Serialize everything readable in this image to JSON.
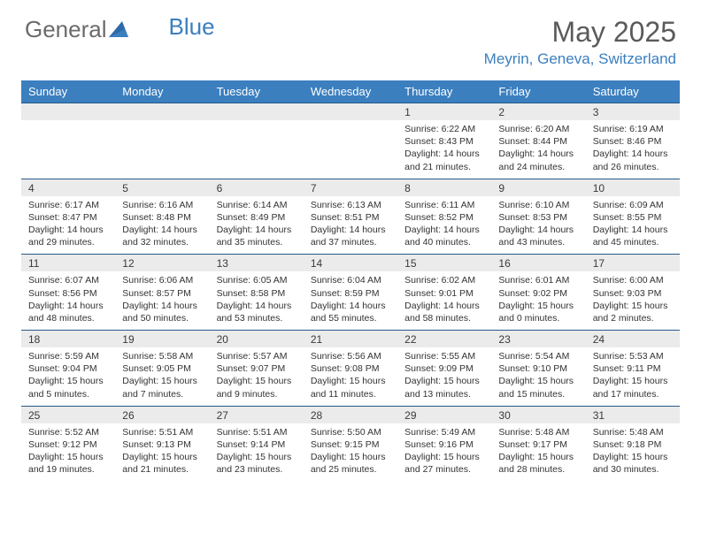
{
  "logo": {
    "text1": "General",
    "text2": "Blue"
  },
  "title": "May 2025",
  "location": "Meyrin, Geneva, Switzerland",
  "colors": {
    "header_bg": "#3b7fbf",
    "header_text": "#ffffff",
    "daynum_bg": "#ebebeb",
    "body_text": "#333333",
    "accent": "#3b7fbf",
    "border": "#255a8a"
  },
  "fonts": {
    "title_size": 32,
    "location_size": 17,
    "header_size": 13,
    "daynum_size": 12,
    "detail_size": 10.5
  },
  "day_labels": [
    "Sunday",
    "Monday",
    "Tuesday",
    "Wednesday",
    "Thursday",
    "Friday",
    "Saturday"
  ],
  "weeks": [
    {
      "nums": [
        "",
        "",
        "",
        "",
        "1",
        "2",
        "3"
      ],
      "details": [
        null,
        null,
        null,
        null,
        {
          "sunrise": "Sunrise: 6:22 AM",
          "sunset": "Sunset: 8:43 PM",
          "day1": "Daylight: 14 hours",
          "day2": "and 21 minutes."
        },
        {
          "sunrise": "Sunrise: 6:20 AM",
          "sunset": "Sunset: 8:44 PM",
          "day1": "Daylight: 14 hours",
          "day2": "and 24 minutes."
        },
        {
          "sunrise": "Sunrise: 6:19 AM",
          "sunset": "Sunset: 8:46 PM",
          "day1": "Daylight: 14 hours",
          "day2": "and 26 minutes."
        }
      ]
    },
    {
      "nums": [
        "4",
        "5",
        "6",
        "7",
        "8",
        "9",
        "10"
      ],
      "details": [
        {
          "sunrise": "Sunrise: 6:17 AM",
          "sunset": "Sunset: 8:47 PM",
          "day1": "Daylight: 14 hours",
          "day2": "and 29 minutes."
        },
        {
          "sunrise": "Sunrise: 6:16 AM",
          "sunset": "Sunset: 8:48 PM",
          "day1": "Daylight: 14 hours",
          "day2": "and 32 minutes."
        },
        {
          "sunrise": "Sunrise: 6:14 AM",
          "sunset": "Sunset: 8:49 PM",
          "day1": "Daylight: 14 hours",
          "day2": "and 35 minutes."
        },
        {
          "sunrise": "Sunrise: 6:13 AM",
          "sunset": "Sunset: 8:51 PM",
          "day1": "Daylight: 14 hours",
          "day2": "and 37 minutes."
        },
        {
          "sunrise": "Sunrise: 6:11 AM",
          "sunset": "Sunset: 8:52 PM",
          "day1": "Daylight: 14 hours",
          "day2": "and 40 minutes."
        },
        {
          "sunrise": "Sunrise: 6:10 AM",
          "sunset": "Sunset: 8:53 PM",
          "day1": "Daylight: 14 hours",
          "day2": "and 43 minutes."
        },
        {
          "sunrise": "Sunrise: 6:09 AM",
          "sunset": "Sunset: 8:55 PM",
          "day1": "Daylight: 14 hours",
          "day2": "and 45 minutes."
        }
      ]
    },
    {
      "nums": [
        "11",
        "12",
        "13",
        "14",
        "15",
        "16",
        "17"
      ],
      "details": [
        {
          "sunrise": "Sunrise: 6:07 AM",
          "sunset": "Sunset: 8:56 PM",
          "day1": "Daylight: 14 hours",
          "day2": "and 48 minutes."
        },
        {
          "sunrise": "Sunrise: 6:06 AM",
          "sunset": "Sunset: 8:57 PM",
          "day1": "Daylight: 14 hours",
          "day2": "and 50 minutes."
        },
        {
          "sunrise": "Sunrise: 6:05 AM",
          "sunset": "Sunset: 8:58 PM",
          "day1": "Daylight: 14 hours",
          "day2": "and 53 minutes."
        },
        {
          "sunrise": "Sunrise: 6:04 AM",
          "sunset": "Sunset: 8:59 PM",
          "day1": "Daylight: 14 hours",
          "day2": "and 55 minutes."
        },
        {
          "sunrise": "Sunrise: 6:02 AM",
          "sunset": "Sunset: 9:01 PM",
          "day1": "Daylight: 14 hours",
          "day2": "and 58 minutes."
        },
        {
          "sunrise": "Sunrise: 6:01 AM",
          "sunset": "Sunset: 9:02 PM",
          "day1": "Daylight: 15 hours",
          "day2": "and 0 minutes."
        },
        {
          "sunrise": "Sunrise: 6:00 AM",
          "sunset": "Sunset: 9:03 PM",
          "day1": "Daylight: 15 hours",
          "day2": "and 2 minutes."
        }
      ]
    },
    {
      "nums": [
        "18",
        "19",
        "20",
        "21",
        "22",
        "23",
        "24"
      ],
      "details": [
        {
          "sunrise": "Sunrise: 5:59 AM",
          "sunset": "Sunset: 9:04 PM",
          "day1": "Daylight: 15 hours",
          "day2": "and 5 minutes."
        },
        {
          "sunrise": "Sunrise: 5:58 AM",
          "sunset": "Sunset: 9:05 PM",
          "day1": "Daylight: 15 hours",
          "day2": "and 7 minutes."
        },
        {
          "sunrise": "Sunrise: 5:57 AM",
          "sunset": "Sunset: 9:07 PM",
          "day1": "Daylight: 15 hours",
          "day2": "and 9 minutes."
        },
        {
          "sunrise": "Sunrise: 5:56 AM",
          "sunset": "Sunset: 9:08 PM",
          "day1": "Daylight: 15 hours",
          "day2": "and 11 minutes."
        },
        {
          "sunrise": "Sunrise: 5:55 AM",
          "sunset": "Sunset: 9:09 PM",
          "day1": "Daylight: 15 hours",
          "day2": "and 13 minutes."
        },
        {
          "sunrise": "Sunrise: 5:54 AM",
          "sunset": "Sunset: 9:10 PM",
          "day1": "Daylight: 15 hours",
          "day2": "and 15 minutes."
        },
        {
          "sunrise": "Sunrise: 5:53 AM",
          "sunset": "Sunset: 9:11 PM",
          "day1": "Daylight: 15 hours",
          "day2": "and 17 minutes."
        }
      ]
    },
    {
      "nums": [
        "25",
        "26",
        "27",
        "28",
        "29",
        "30",
        "31"
      ],
      "details": [
        {
          "sunrise": "Sunrise: 5:52 AM",
          "sunset": "Sunset: 9:12 PM",
          "day1": "Daylight: 15 hours",
          "day2": "and 19 minutes."
        },
        {
          "sunrise": "Sunrise: 5:51 AM",
          "sunset": "Sunset: 9:13 PM",
          "day1": "Daylight: 15 hours",
          "day2": "and 21 minutes."
        },
        {
          "sunrise": "Sunrise: 5:51 AM",
          "sunset": "Sunset: 9:14 PM",
          "day1": "Daylight: 15 hours",
          "day2": "and 23 minutes."
        },
        {
          "sunrise": "Sunrise: 5:50 AM",
          "sunset": "Sunset: 9:15 PM",
          "day1": "Daylight: 15 hours",
          "day2": "and 25 minutes."
        },
        {
          "sunrise": "Sunrise: 5:49 AM",
          "sunset": "Sunset: 9:16 PM",
          "day1": "Daylight: 15 hours",
          "day2": "and 27 minutes."
        },
        {
          "sunrise": "Sunrise: 5:48 AM",
          "sunset": "Sunset: 9:17 PM",
          "day1": "Daylight: 15 hours",
          "day2": "and 28 minutes."
        },
        {
          "sunrise": "Sunrise: 5:48 AM",
          "sunset": "Sunset: 9:18 PM",
          "day1": "Daylight: 15 hours",
          "day2": "and 30 minutes."
        }
      ]
    }
  ]
}
